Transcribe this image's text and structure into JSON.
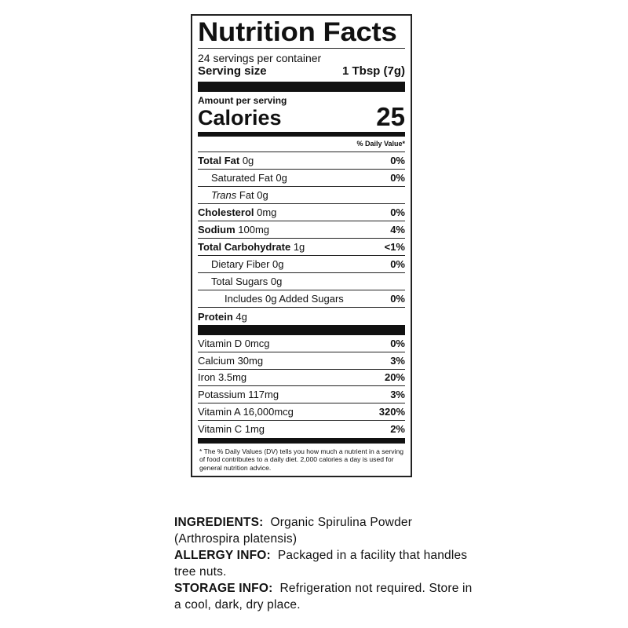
{
  "label": {
    "title": "Nutrition Facts",
    "servings": "24 servings per container",
    "serving_size_label": "Serving size",
    "serving_size_value": "1 Tbsp (7g)",
    "amount_per_serving": "Amount per serving",
    "calories_label": "Calories",
    "calories_value": "25",
    "daily_value_header": "% Daily Value*",
    "nutrients": [
      {
        "bold": "Total Fat",
        "amount": " 0g",
        "dv": "0%"
      },
      {
        "bold": "",
        "amount": "Saturated Fat 0g",
        "dv": "0%"
      },
      {
        "italic": "Trans",
        "amount": " Fat 0g",
        "dv": ""
      },
      {
        "bold": "Cholesterol",
        "amount": " 0mg",
        "dv": "0%"
      },
      {
        "bold": "Sodium",
        "amount": " 100mg",
        "dv": "4%"
      },
      {
        "bold": "Total Carbohydrate",
        "amount": " 1g",
        "dv": "<1%"
      },
      {
        "bold": "",
        "amount": "Dietary Fiber 0g",
        "dv": "0%"
      },
      {
        "bold": "",
        "amount": "Total Sugars 0g",
        "dv": ""
      },
      {
        "bold": "",
        "amount": "Includes 0g Added Sugars",
        "dv": "0%"
      },
      {
        "bold": "Protein",
        "amount": " 4g",
        "dv": ""
      }
    ],
    "vitamins": [
      {
        "name": "Vitamin D 0mcg",
        "dv": "0%"
      },
      {
        "name": "Calcium 30mg",
        "dv": "3%"
      },
      {
        "name": "Iron 3.5mg",
        "dv": "20%"
      },
      {
        "name": "Potassium 117mg",
        "dv": "3%"
      },
      {
        "name": "Vitamin A 16,000mcg",
        "dv": "320%"
      },
      {
        "name": "Vitamin C 1mg",
        "dv": "2%"
      }
    ],
    "footnote": "* The % Daily Values (DV) tells you how much a nutrient in a serving of food contributes to a daily diet. 2,000 calories a day is used for general nutrition advice."
  },
  "info": {
    "ingredients_label": "INGREDIENTS:",
    "ingredients": "Organic Spirulina Powder (Arthrospira platensis)",
    "allergy_label": "ALLERGY INFO:",
    "allergy": "Packaged in a facility that handles tree nuts.",
    "storage_label": "STORAGE INFO:",
    "storage": "Refrigeration not required. Store in a cool, dark, dry place."
  }
}
